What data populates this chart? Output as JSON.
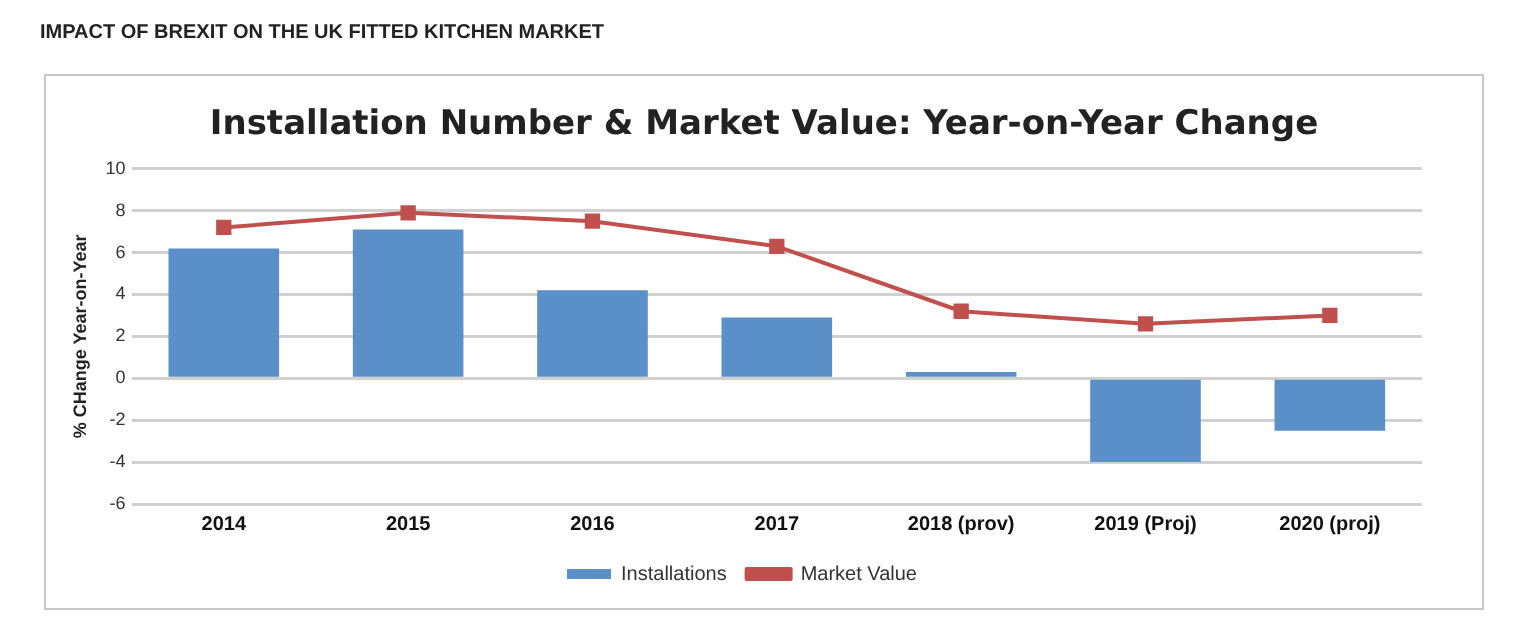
{
  "chart_data": {
    "type": "bar",
    "title": "IMPACT OF BREXIT ON THE UK FITTED KITCHEN MARKET",
    "subtitle": "Installation Number & Market Value: Year-on-Year Change",
    "ylabel": "% CHange Year-on-Year",
    "categories": [
      "2014",
      "2015",
      "2016",
      "2017",
      "2018 (prov)",
      "2019 (Proj)",
      "2020 (proj)"
    ],
    "series": [
      {
        "name": "Installations",
        "color": "#5b8fc7",
        "values": [
          6.2,
          7.1,
          4.2,
          2.9,
          0.3,
          -4.0,
          -2.5
        ]
      },
      {
        "name": "Market Value",
        "type": "line",
        "color": "#c0504d",
        "values": [
          7.2,
          7.9,
          7.5,
          6.3,
          3.2,
          2.6,
          3.0
        ]
      }
    ],
    "ylim": [
      -6,
      10
    ],
    "yticks": [
      -6,
      -4,
      -2,
      0,
      2,
      4,
      6,
      8,
      10
    ],
    "grid": "y",
    "legend": "bottom",
    "marker": "square"
  }
}
